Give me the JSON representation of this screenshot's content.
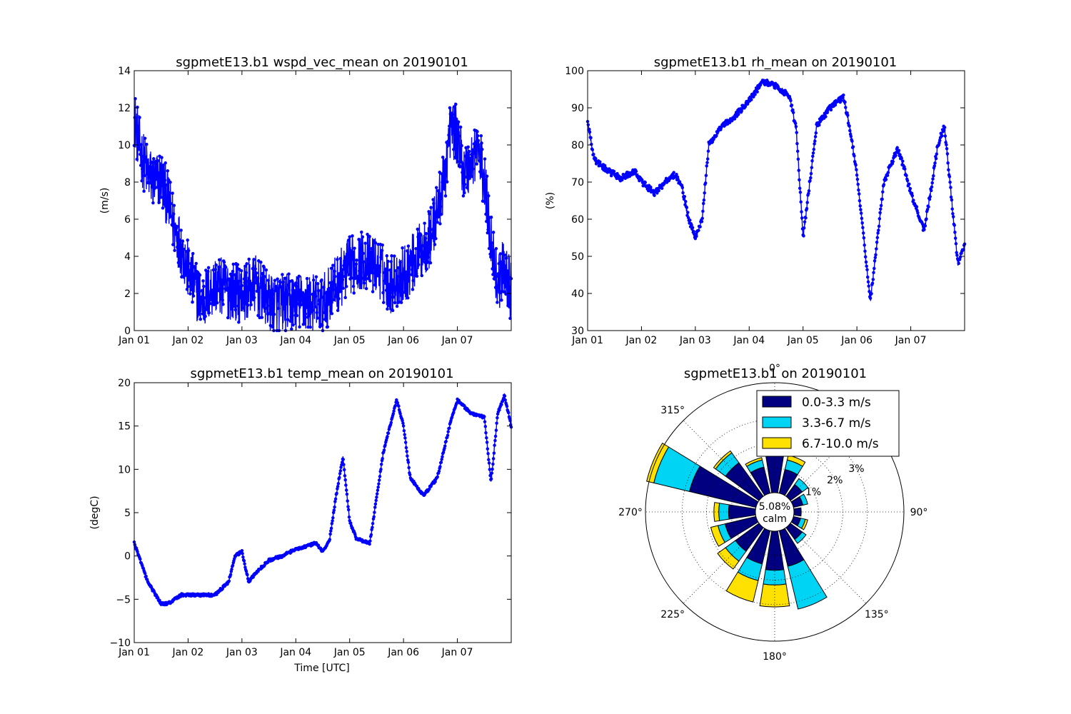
{
  "chart_data": [
    {
      "type": "line",
      "title": "sgpmetE13.b1 wspd_vec_mean on 20190101",
      "xlabel": "",
      "ylabel": "(m/s)",
      "xlim": [
        "2019-01-01",
        "2019-01-08"
      ],
      "ylim": [
        0,
        14
      ],
      "x_ticks": [
        "Jan 01",
        "Jan 02",
        "Jan 03",
        "Jan 04",
        "Jan 05",
        "Jan 06",
        "Jan 07"
      ],
      "y_ticks": [
        "0",
        "2",
        "4",
        "6",
        "8",
        "10",
        "12",
        "14"
      ],
      "y_tick_values": [
        0,
        2,
        4,
        6,
        8,
        10,
        12,
        14
      ],
      "marker": "dot",
      "color": "#0000ff",
      "noise": 1.6,
      "series": [
        {
          "x": [
            "2019-01-01T00:00",
            "2019-01-01T03:00",
            "2019-01-01T06:00",
            "2019-01-01T09:00",
            "2019-01-01T12:00",
            "2019-01-01T15:00",
            "2019-01-01T18:00",
            "2019-01-01T21:00",
            "2019-01-02T00:00",
            "2019-01-02T06:00",
            "2019-01-02T12:00",
            "2019-01-02T18:00",
            "2019-01-03T00:00",
            "2019-01-03T06:00",
            "2019-01-03T12:00",
            "2019-01-03T18:00",
            "2019-01-04T00:00",
            "2019-01-04T06:00",
            "2019-01-04T12:00",
            "2019-01-04T18:00",
            "2019-01-05T00:00",
            "2019-01-05T06:00",
            "2019-01-05T12:00",
            "2019-01-05T18:00",
            "2019-01-06T00:00",
            "2019-01-06T06:00",
            "2019-01-06T12:00",
            "2019-01-06T18:00",
            "2019-01-06T21:00",
            "2019-01-07T00:00",
            "2019-01-07T03:00",
            "2019-01-07T06:00",
            "2019-01-07T09:00",
            "2019-01-07T12:00",
            "2019-01-07T15:00",
            "2019-01-07T18:00",
            "2019-01-07T21:00",
            "2019-01-08T00:00"
          ],
          "y": [
            11.5,
            9.5,
            8.5,
            8.0,
            8.2,
            7.0,
            5.5,
            4.5,
            3.2,
            1.5,
            2.5,
            2.2,
            2.0,
            2.5,
            1.5,
            1.5,
            1.5,
            1.5,
            1.4,
            2.5,
            3.5,
            3.8,
            3.5,
            2.5,
            3.0,
            4.0,
            5.0,
            8.0,
            11.0,
            10.5,
            8.5,
            9.0,
            10.0,
            8.0,
            5.0,
            2.5,
            3.5,
            2.0
          ]
        }
      ]
    },
    {
      "type": "line",
      "title": "sgpmetE13.b1 rh_mean on 20190101",
      "xlabel": "",
      "ylabel": "(%)",
      "xlim": [
        "2019-01-01",
        "2019-01-08"
      ],
      "ylim": [
        30,
        100
      ],
      "x_ticks": [
        "Jan 01",
        "Jan 02",
        "Jan 03",
        "Jan 04",
        "Jan 05",
        "Jan 06",
        "Jan 07"
      ],
      "y_ticks": [
        "30",
        "40",
        "50",
        "60",
        "70",
        "80",
        "90",
        "100"
      ],
      "y_tick_values": [
        30,
        40,
        50,
        60,
        70,
        80,
        90,
        100
      ],
      "marker": "dot",
      "color": "#0000ff",
      "noise": 0.8,
      "series": [
        {
          "x": [
            "2019-01-01T00:00",
            "2019-01-01T03:00",
            "2019-01-01T09:00",
            "2019-01-01T15:00",
            "2019-01-01T21:00",
            "2019-01-02T00:00",
            "2019-01-02T06:00",
            "2019-01-02T12:00",
            "2019-01-02T15:00",
            "2019-01-02T18:00",
            "2019-01-02T21:00",
            "2019-01-03T00:00",
            "2019-01-03T03:00",
            "2019-01-03T06:00",
            "2019-01-03T12:00",
            "2019-01-03T18:00",
            "2019-01-04T00:00",
            "2019-01-04T06:00",
            "2019-01-04T12:00",
            "2019-01-04T18:00",
            "2019-01-04T21:00",
            "2019-01-05T00:00",
            "2019-01-05T06:00",
            "2019-01-05T12:00",
            "2019-01-05T18:00",
            "2019-01-05T21:00",
            "2019-01-06T00:00",
            "2019-01-06T06:00",
            "2019-01-06T12:00",
            "2019-01-06T18:00",
            "2019-01-06T21:00",
            "2019-01-07T00:00",
            "2019-01-07T06:00",
            "2019-01-07T09:00",
            "2019-01-07T12:00",
            "2019-01-07T15:00",
            "2019-01-07T21:00",
            "2019-01-08T00:00"
          ],
          "y": [
            86,
            76,
            73,
            71,
            73,
            70,
            67,
            71,
            72,
            69,
            60,
            55,
            60,
            80,
            85,
            88,
            92,
            97,
            96,
            93,
            84,
            55,
            85,
            90,
            93,
            84,
            72,
            38,
            70,
            79,
            74,
            67,
            57,
            68,
            80,
            85,
            48,
            53
          ]
        }
      ]
    },
    {
      "type": "line",
      "title": "sgpmetE13.b1 temp_mean on 20190101",
      "xlabel": "Time [UTC]",
      "ylabel": "(degC)",
      "xlim": [
        "2019-01-01",
        "2019-01-08"
      ],
      "ylim": [
        -10,
        20
      ],
      "x_ticks": [
        "Jan 01",
        "Jan 02",
        "Jan 03",
        "Jan 04",
        "Jan 05",
        "Jan 06",
        "Jan 07"
      ],
      "y_ticks": [
        "−10",
        "−5",
        "0",
        "5",
        "10",
        "15",
        "20"
      ],
      "y_tick_values": [
        -10,
        -5,
        0,
        5,
        10,
        15,
        20
      ],
      "marker": "dot",
      "color": "#0000ff",
      "noise": 0.15,
      "series": [
        {
          "x": [
            "2019-01-01T00:00",
            "2019-01-01T06:00",
            "2019-01-01T12:00",
            "2019-01-01T15:00",
            "2019-01-01T21:00",
            "2019-01-02T06:00",
            "2019-01-02T12:00",
            "2019-01-02T18:00",
            "2019-01-02T21:00",
            "2019-01-03T00:00",
            "2019-01-03T03:00",
            "2019-01-03T06:00",
            "2019-01-03T12:00",
            "2019-01-03T18:00",
            "2019-01-04T00:00",
            "2019-01-04T06:00",
            "2019-01-04T09:00",
            "2019-01-04T12:00",
            "2019-01-04T15:00",
            "2019-01-04T18:00",
            "2019-01-04T21:00",
            "2019-01-05T00:00",
            "2019-01-05T03:00",
            "2019-01-05T09:00",
            "2019-01-05T15:00",
            "2019-01-05T21:00",
            "2019-01-06T00:00",
            "2019-01-06T03:00",
            "2019-01-06T09:00",
            "2019-01-06T15:00",
            "2019-01-06T21:00",
            "2019-01-07T00:00",
            "2019-01-07T06:00",
            "2019-01-07T12:00",
            "2019-01-07T15:00",
            "2019-01-07T18:00",
            "2019-01-07T21:00",
            "2019-01-08T00:00"
          ],
          "y": [
            1.5,
            -3.0,
            -5.5,
            -5.5,
            -4.5,
            -4.5,
            -4.5,
            -3.0,
            0.0,
            0.5,
            -3.0,
            -2.0,
            -0.5,
            0.0,
            0.8,
            1.2,
            1.5,
            0.5,
            1.8,
            7.0,
            11.5,
            4.0,
            2.0,
            1.5,
            12.0,
            18.0,
            15.0,
            9.0,
            7.0,
            9.0,
            15.5,
            18.0,
            16.5,
            16.0,
            8.5,
            16.5,
            18.5,
            15.0
          ]
        }
      ]
    },
    {
      "type": "windrose",
      "title": "sgpmetE13.b1 on 20190101",
      "direction_labels": [
        "0°",
        "45°",
        "90°",
        "135°",
        "180°",
        "225°",
        "270°",
        "315°"
      ],
      "direction_angles": [
        0,
        45,
        90,
        135,
        180,
        225,
        270,
        315
      ],
      "radial_ticks": [
        "1%",
        "2%",
        "3%"
      ],
      "radial_tick_values": [
        1,
        2,
        3
      ],
      "rmax": 4.5,
      "calm_label": "5.08%\ncalm",
      "legend_placement": "top-right",
      "bin_width_deg": 22.5,
      "series": [
        {
          "name": "0.0-3.3 m/s",
          "color": "#000080"
        },
        {
          "name": "3.3-6.7 m/s",
          "color": "#00d4f5"
        },
        {
          "name": "6.7-10.0 m/s",
          "color": "#ffe100"
        }
      ],
      "directions": [
        0,
        22.5,
        45,
        67.5,
        90,
        112.5,
        135,
        157.5,
        180,
        202.5,
        225,
        247.5,
        270,
        292.5,
        315,
        337.5
      ],
      "stacks": [
        [
          1.7,
          0.9,
          0.1
        ],
        [
          1.0,
          0.4,
          0.2
        ],
        [
          0.6,
          0.3,
          0.0
        ],
        [
          0.4,
          0.2,
          0.0
        ],
        [
          0.3,
          0.0,
          0.0
        ],
        [
          0.3,
          0.2,
          0.1
        ],
        [
          0.6,
          0.2,
          0.0
        ],
        [
          1.5,
          1.8,
          0.0
        ],
        [
          1.6,
          0.6,
          0.9
        ],
        [
          1.4,
          0.7,
          0.9
        ],
        [
          1.2,
          0.5,
          0.4
        ],
        [
          1.3,
          0.3,
          0.3
        ],
        [
          1.1,
          0.4,
          0.2
        ],
        [
          2.8,
          1.5,
          0.3
        ],
        [
          1.7,
          0.5,
          0.1
        ],
        [
          1.1,
          0.3,
          0.1
        ]
      ]
    }
  ]
}
